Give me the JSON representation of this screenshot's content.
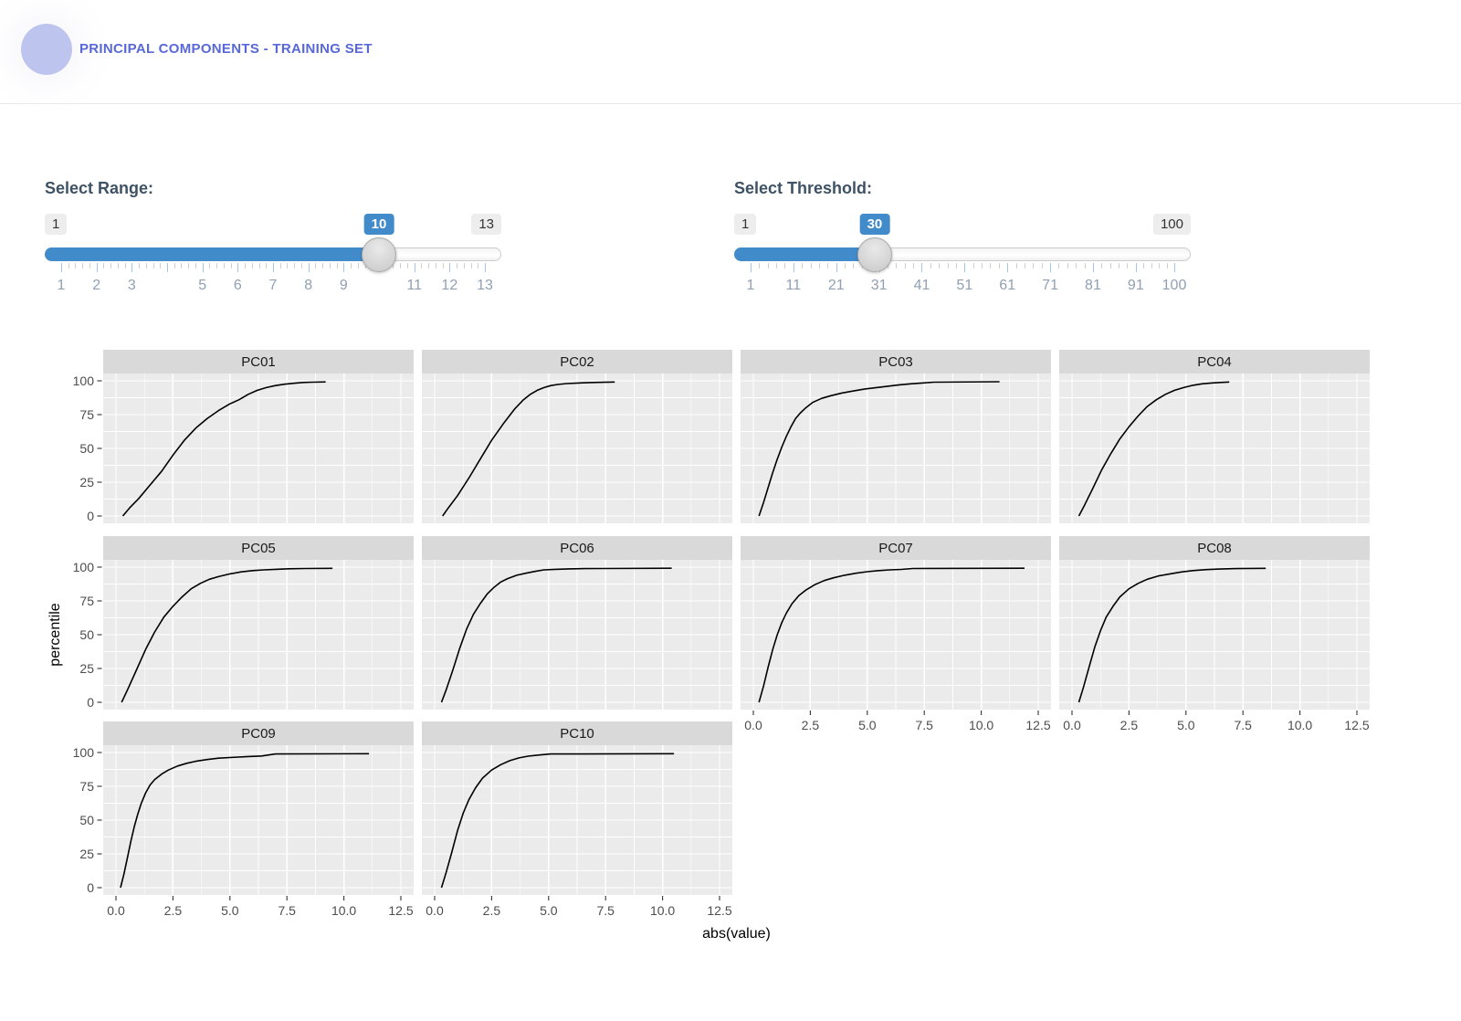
{
  "header": {
    "title": "PRINCIPAL COMPONENTS - TRAINING SET"
  },
  "colors": {
    "accent_blue": "#428bca",
    "title_blue": "#5868d9",
    "logo_purple": "#bdc5ef",
    "label_slate": "#3e5266",
    "slider_grid_text": "#90a0b4",
    "major_tick_blue": "#a4c6e6",
    "panel_bg": "#ebebeb",
    "strip_bg": "#d9d9d9",
    "axis_text": "#4d4d4d",
    "curve": "#000000"
  },
  "controls": {
    "range": {
      "label": "Select Range:",
      "min": 1,
      "max": 13,
      "value": 10,
      "min_badge": "1",
      "max_badge": "13",
      "value_badge": "10",
      "major_ticks": [
        1,
        2,
        3,
        4,
        5,
        6,
        7,
        8,
        9,
        10,
        11,
        12,
        13
      ],
      "tick_labels": [
        "1",
        "2",
        "3",
        "",
        "5",
        "6",
        "7",
        "8",
        "9",
        "",
        "11",
        "12",
        "13"
      ]
    },
    "threshold": {
      "label": "Select Threshold:",
      "min": 1,
      "max": 100,
      "value": 30,
      "min_badge": "1",
      "max_badge": "100",
      "value_badge": "30",
      "major_ticks": [
        1,
        11,
        21,
        31,
        41,
        51,
        61,
        71,
        81,
        91,
        100
      ],
      "tick_labels": [
        "1",
        "11",
        "21",
        "31",
        "41",
        "51",
        "61",
        "71",
        "81",
        "91",
        "100"
      ]
    }
  },
  "chart_data": {
    "type": "line",
    "subtype": "ecdf",
    "xlabel": "abs(value)",
    "ylabel": "percentile",
    "xlim": [
      0,
      12.5
    ],
    "ylim": [
      0,
      100
    ],
    "x_ticks": [
      0,
      2.5,
      5,
      7.5,
      10,
      12.5
    ],
    "x_tick_labels": [
      "0.0",
      "2.5",
      "5.0",
      "7.5",
      "10.0",
      "12.5"
    ],
    "y_ticks": [
      0,
      25,
      50,
      75,
      100
    ],
    "y_tick_labels": [
      "0",
      "25",
      "50",
      "75",
      "100"
    ],
    "ncol": 4,
    "grid": true,
    "legend": "none",
    "facets": [
      {
        "label": "PC01",
        "points": [
          [
            0.3,
            0
          ],
          [
            0.6,
            6
          ],
          [
            1.0,
            13
          ],
          [
            1.5,
            23
          ],
          [
            2.0,
            33
          ],
          [
            2.5,
            45
          ],
          [
            3.0,
            56
          ],
          [
            3.5,
            65
          ],
          [
            4.0,
            72
          ],
          [
            4.5,
            78
          ],
          [
            5.0,
            83
          ],
          [
            5.4,
            86
          ],
          [
            5.8,
            90
          ],
          [
            6.2,
            93
          ],
          [
            6.6,
            95
          ],
          [
            7.0,
            96.5
          ],
          [
            7.4,
            97.5
          ],
          [
            7.8,
            98.2
          ],
          [
            8.2,
            98.8
          ],
          [
            8.6,
            99
          ],
          [
            9.2,
            99.2
          ]
        ]
      },
      {
        "label": "PC02",
        "points": [
          [
            0.35,
            0
          ],
          [
            0.6,
            6
          ],
          [
            1.0,
            15
          ],
          [
            1.5,
            28
          ],
          [
            2.0,
            42
          ],
          [
            2.5,
            56
          ],
          [
            3.0,
            68
          ],
          [
            3.5,
            79
          ],
          [
            3.9,
            86
          ],
          [
            4.2,
            90
          ],
          [
            4.5,
            93
          ],
          [
            4.8,
            95
          ],
          [
            5.1,
            96.5
          ],
          [
            5.4,
            97.3
          ],
          [
            5.8,
            98
          ],
          [
            6.3,
            98.4
          ],
          [
            6.8,
            98.7
          ],
          [
            7.4,
            98.9
          ],
          [
            7.9,
            99.1
          ]
        ]
      },
      {
        "label": "PC03",
        "points": [
          [
            0.25,
            0
          ],
          [
            0.45,
            10
          ],
          [
            0.65,
            21
          ],
          [
            0.85,
            32
          ],
          [
            1.05,
            42
          ],
          [
            1.25,
            51
          ],
          [
            1.45,
            59
          ],
          [
            1.65,
            66
          ],
          [
            1.85,
            72
          ],
          [
            2.05,
            76
          ],
          [
            2.3,
            80
          ],
          [
            2.6,
            84
          ],
          [
            3.0,
            87
          ],
          [
            3.4,
            89
          ],
          [
            3.9,
            91
          ],
          [
            4.4,
            92.5
          ],
          [
            4.9,
            94
          ],
          [
            5.4,
            95
          ],
          [
            5.9,
            96
          ],
          [
            6.4,
            97
          ],
          [
            6.9,
            97.8
          ],
          [
            7.4,
            98.4
          ],
          [
            7.9,
            99
          ],
          [
            10.8,
            99.3
          ]
        ]
      },
      {
        "label": "PC04",
        "points": [
          [
            0.3,
            0
          ],
          [
            0.55,
            8
          ],
          [
            0.9,
            20
          ],
          [
            1.3,
            34
          ],
          [
            1.7,
            46
          ],
          [
            2.1,
            57
          ],
          [
            2.5,
            66
          ],
          [
            2.9,
            74
          ],
          [
            3.3,
            81
          ],
          [
            3.7,
            86
          ],
          [
            4.1,
            90
          ],
          [
            4.5,
            93
          ],
          [
            4.9,
            95
          ],
          [
            5.3,
            96.7
          ],
          [
            5.7,
            97.8
          ],
          [
            6.1,
            98.4
          ],
          [
            6.5,
            98.8
          ],
          [
            6.9,
            99.1
          ]
        ]
      },
      {
        "label": "PC05",
        "points": [
          [
            0.25,
            0
          ],
          [
            0.5,
            9
          ],
          [
            0.9,
            24
          ],
          [
            1.3,
            39
          ],
          [
            1.7,
            52
          ],
          [
            2.1,
            63
          ],
          [
            2.5,
            71
          ],
          [
            2.9,
            78
          ],
          [
            3.3,
            84
          ],
          [
            3.7,
            88
          ],
          [
            4.1,
            91
          ],
          [
            4.5,
            93
          ],
          [
            5.0,
            95
          ],
          [
            5.5,
            96.5
          ],
          [
            6.0,
            97.4
          ],
          [
            6.5,
            98
          ],
          [
            7.0,
            98.4
          ],
          [
            7.6,
            98.8
          ],
          [
            8.3,
            99
          ],
          [
            9.5,
            99.1
          ]
        ]
      },
      {
        "label": "PC06",
        "points": [
          [
            0.3,
            0
          ],
          [
            0.5,
            9
          ],
          [
            0.8,
            24
          ],
          [
            1.1,
            40
          ],
          [
            1.4,
            54
          ],
          [
            1.7,
            65
          ],
          [
            2.0,
            73
          ],
          [
            2.3,
            80
          ],
          [
            2.6,
            85
          ],
          [
            2.9,
            89
          ],
          [
            3.2,
            91.5
          ],
          [
            3.6,
            94
          ],
          [
            4.0,
            95.5
          ],
          [
            4.4,
            96.8
          ],
          [
            4.8,
            98
          ],
          [
            5.3,
            98.4
          ],
          [
            5.9,
            98.7
          ],
          [
            6.6,
            98.9
          ],
          [
            7.4,
            99.0
          ],
          [
            10.4,
            99.2
          ]
        ]
      },
      {
        "label": "PC07",
        "points": [
          [
            0.25,
            0
          ],
          [
            0.45,
            12
          ],
          [
            0.65,
            26
          ],
          [
            0.85,
            39
          ],
          [
            1.05,
            50
          ],
          [
            1.25,
            59
          ],
          [
            1.45,
            66
          ],
          [
            1.7,
            73
          ],
          [
            2.0,
            79
          ],
          [
            2.3,
            83
          ],
          [
            2.7,
            87
          ],
          [
            3.1,
            90
          ],
          [
            3.5,
            92
          ],
          [
            4.0,
            94
          ],
          [
            4.5,
            95.5
          ],
          [
            5.0,
            96.6
          ],
          [
            5.5,
            97.4
          ],
          [
            6.0,
            98
          ],
          [
            6.5,
            98.3
          ],
          [
            7.0,
            99
          ],
          [
            11.9,
            99.2
          ]
        ]
      },
      {
        "label": "PC08",
        "points": [
          [
            0.3,
            0
          ],
          [
            0.5,
            11
          ],
          [
            0.75,
            26
          ],
          [
            1.0,
            41
          ],
          [
            1.25,
            53
          ],
          [
            1.5,
            63
          ],
          [
            1.8,
            71
          ],
          [
            2.1,
            78
          ],
          [
            2.5,
            84
          ],
          [
            2.9,
            88
          ],
          [
            3.3,
            91
          ],
          [
            3.8,
            93.5
          ],
          [
            4.3,
            95
          ],
          [
            4.8,
            96.4
          ],
          [
            5.3,
            97.4
          ],
          [
            5.9,
            98.2
          ],
          [
            6.5,
            98.6
          ],
          [
            7.2,
            98.9
          ],
          [
            8.5,
            99.1
          ]
        ]
      },
      {
        "label": "PC09",
        "points": [
          [
            0.2,
            0
          ],
          [
            0.35,
            10
          ],
          [
            0.5,
            22
          ],
          [
            0.65,
            34
          ],
          [
            0.8,
            45
          ],
          [
            0.95,
            54
          ],
          [
            1.1,
            62
          ],
          [
            1.3,
            70
          ],
          [
            1.5,
            76
          ],
          [
            1.7,
            80
          ],
          [
            2.0,
            84
          ],
          [
            2.3,
            87
          ],
          [
            2.7,
            90
          ],
          [
            3.1,
            92
          ],
          [
            3.5,
            93.5
          ],
          [
            4.0,
            94.8
          ],
          [
            4.5,
            95.8
          ],
          [
            5.0,
            96.3
          ],
          [
            5.8,
            97
          ],
          [
            6.4,
            97.4
          ],
          [
            7.0,
            98.9
          ],
          [
            11.1,
            99.1
          ]
        ]
      },
      {
        "label": "PC10",
        "points": [
          [
            0.3,
            0
          ],
          [
            0.5,
            11
          ],
          [
            0.75,
            26
          ],
          [
            1.0,
            42
          ],
          [
            1.25,
            55
          ],
          [
            1.5,
            65
          ],
          [
            1.8,
            74
          ],
          [
            2.1,
            81
          ],
          [
            2.5,
            87
          ],
          [
            2.9,
            91
          ],
          [
            3.3,
            94
          ],
          [
            3.7,
            96
          ],
          [
            4.1,
            97.3
          ],
          [
            4.6,
            98.2
          ],
          [
            5.1,
            98.9
          ],
          [
            10.5,
            99.1
          ]
        ]
      }
    ]
  }
}
